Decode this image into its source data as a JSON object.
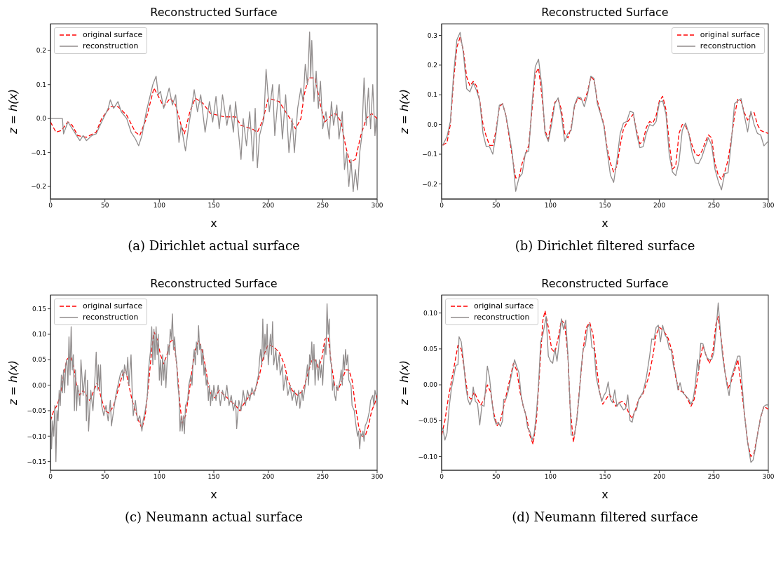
{
  "chart_data": [
    {
      "type": "line",
      "title": "Reconstructed Surface",
      "xlabel": "x",
      "ylabel": "z = h(x)",
      "xlim": [
        0,
        300
      ],
      "xticks": [
        0,
        50,
        100,
        150,
        200,
        250,
        300
      ],
      "ylim": [
        -0.237,
        0.279
      ],
      "yticks": [
        {
          "value": -0.2,
          "label": "−0.2"
        },
        {
          "value": -0.1,
          "label": "−0.1"
        },
        {
          "value": 0,
          "label": "0.0"
        },
        {
          "value": 0.1,
          "label": "0.1"
        },
        {
          "value": 0.2,
          "label": "0.2"
        }
      ],
      "legend": "top left",
      "grid": false,
      "annotations": [
        "(a) Dirichlet actual surface"
      ],
      "series": [
        {
          "name": "original surface",
          "color": "#ff0000",
          "line_style": "dashed",
          "x": [
            0,
            5,
            10,
            16,
            20,
            25,
            33,
            42,
            47,
            55,
            62,
            70,
            78,
            82,
            88,
            95,
            100,
            104,
            110,
            115,
            120,
            123,
            128,
            133,
            140,
            147,
            160,
            170,
            175,
            185,
            190,
            195,
            200,
            210,
            220,
            225,
            230,
            233,
            237,
            243,
            248,
            252,
            258,
            262,
            267,
            271,
            275,
            280,
            285,
            290,
            295,
            300
          ],
          "values": [
            -0.01,
            -0.04,
            -0.035,
            -0.01,
            -0.02,
            -0.05,
            -0.055,
            -0.04,
            0.0,
            0.035,
            0.035,
            0.01,
            -0.04,
            -0.05,
            0.0,
            0.09,
            0.06,
            0.035,
            0.06,
            0.04,
            -0.02,
            -0.045,
            0.02,
            0.06,
            0.045,
            0.015,
            0.005,
            0.005,
            -0.02,
            -0.03,
            -0.04,
            -0.005,
            0.06,
            0.05,
            0.0,
            -0.03,
            0.0,
            0.07,
            0.12,
            0.12,
            0.04,
            -0.01,
            0.01,
            0.015,
            -0.01,
            -0.08,
            -0.13,
            -0.12,
            -0.05,
            0.0,
            0.015,
            0.0
          ]
        },
        {
          "name": "reconstruction",
          "color": "#918d8d",
          "line_style": "solid",
          "x": [
            0,
            11,
            12,
            16,
            20,
            25,
            27,
            30,
            33,
            38,
            42,
            47,
            53,
            55,
            58,
            62,
            65,
            70,
            74,
            78,
            81,
            84,
            88,
            94,
            97,
            99,
            101,
            104,
            109,
            112,
            115,
            118,
            120,
            124,
            127,
            130,
            132,
            135,
            138,
            142,
            146,
            149,
            152,
            155,
            158,
            162,
            165,
            168,
            170,
            175,
            177,
            180,
            183,
            186,
            188,
            190,
            192,
            196,
            198,
            201,
            204,
            206,
            210,
            213,
            216,
            219,
            222,
            224,
            227,
            230,
            232,
            234,
            236,
            238,
            239,
            240,
            242,
            244,
            246,
            248,
            250,
            253,
            256,
            258,
            260,
            263,
            265,
            268,
            270,
            272,
            274,
            276,
            278,
            280,
            282,
            284,
            286,
            288,
            290,
            292,
            294,
            296,
            298,
            299,
            300
          ],
          "values": [
            0,
            0,
            -0.045,
            -0.01,
            -0.03,
            -0.055,
            -0.065,
            -0.05,
            -0.065,
            -0.05,
            -0.045,
            -0.01,
            0.03,
            0.055,
            0.03,
            0.05,
            0.02,
            0.0,
            -0.04,
            -0.06,
            -0.08,
            -0.05,
            0.02,
            0.1,
            0.125,
            0.07,
            0.08,
            0.03,
            0.09,
            0.04,
            0.07,
            -0.07,
            -0.02,
            -0.095,
            -0.02,
            0.04,
            0.085,
            0.02,
            0.07,
            -0.04,
            0.05,
            -0.01,
            0.065,
            -0.03,
            0.07,
            -0.02,
            0.04,
            -0.04,
            0.05,
            -0.12,
            0.0,
            -0.08,
            0.02,
            -0.125,
            0.03,
            -0.145,
            -0.05,
            0.0,
            0.145,
            0.02,
            0.1,
            -0.05,
            0.1,
            -0.06,
            0.07,
            -0.1,
            0.0,
            -0.1,
            0.03,
            0.09,
            0.05,
            0.16,
            0.1,
            0.255,
            0.12,
            0.23,
            0.05,
            0.14,
            0.03,
            0.11,
            -0.03,
            0.02,
            -0.06,
            0.05,
            -0.02,
            0.04,
            -0.06,
            0.02,
            -0.15,
            -0.1,
            -0.2,
            -0.12,
            -0.215,
            -0.15,
            -0.21,
            -0.1,
            -0.05,
            0.12,
            -0.02,
            0.09,
            -0.03,
            0.1,
            -0.05,
            0.0,
            -0.06
          ]
        }
      ]
    },
    {
      "type": "line",
      "title": "Reconstructed Surface",
      "xlabel": "x",
      "ylabel": "z = h(x)",
      "xlim": [
        0,
        300
      ],
      "xticks": [
        0,
        50,
        100,
        150,
        200,
        250,
        300
      ],
      "ylim": [
        -0.251,
        0.339
      ],
      "yticks": [
        {
          "value": -0.2,
          "label": "−0.2"
        },
        {
          "value": -0.1,
          "label": "−0.1"
        },
        {
          "value": 0,
          "label": "0.0"
        },
        {
          "value": 0.1,
          "label": "0.1"
        },
        {
          "value": 0.2,
          "label": "0.2"
        },
        {
          "value": 0.3,
          "label": "0.3"
        }
      ],
      "legend": "top right",
      "grid": false,
      "annotations": [
        "(b) Dirichlet filtered surface"
      ],
      "series": [
        {
          "name": "original surface",
          "color": "#ff0000",
          "line_style": "dashed",
          "x": [
            1,
            5,
            8,
            11,
            14,
            17,
            20,
            23,
            26,
            29,
            32,
            35,
            38,
            41,
            44,
            47,
            50,
            53,
            56,
            59,
            62,
            65,
            68,
            71,
            74,
            77,
            80,
            83,
            86,
            89,
            92,
            95,
            98,
            101,
            104,
            107,
            110,
            113,
            116,
            119,
            122,
            125,
            128,
            131,
            134,
            137,
            140,
            143,
            146,
            149,
            152,
            155,
            158,
            161,
            164,
            167,
            170,
            173,
            176,
            179,
            182,
            185,
            188,
            191,
            194,
            197,
            200,
            203,
            206,
            209,
            212,
            215,
            218,
            221,
            224,
            227,
            230,
            233,
            236,
            239,
            242,
            245,
            248,
            251,
            254,
            257,
            260,
            263,
            266,
            269,
            272,
            275,
            278,
            281,
            284,
            287,
            290,
            293,
            296,
            300
          ],
          "values": [
            -0.07,
            -0.06,
            0.0,
            0.15,
            0.26,
            0.295,
            0.25,
            0.16,
            0.13,
            0.145,
            0.13,
            0.08,
            0.0,
            -0.04,
            -0.07,
            -0.07,
            -0.02,
            0.06,
            0.07,
            0.03,
            -0.04,
            -0.11,
            -0.18,
            -0.18,
            -0.13,
            -0.1,
            -0.07,
            0.05,
            0.17,
            0.19,
            0.1,
            -0.02,
            -0.05,
            0.02,
            0.075,
            0.085,
            0.05,
            -0.03,
            -0.045,
            -0.01,
            0.06,
            0.09,
            0.085,
            0.08,
            0.11,
            0.16,
            0.15,
            0.08,
            0.04,
            0.0,
            -0.08,
            -0.13,
            -0.16,
            -0.14,
            -0.07,
            -0.015,
            0.005,
            0.02,
            0.035,
            -0.02,
            -0.065,
            -0.055,
            -0.01,
            0.01,
            0.005,
            0.03,
            0.08,
            0.095,
            0.05,
            -0.06,
            -0.15,
            -0.14,
            -0.03,
            0.0,
            -0.005,
            -0.03,
            -0.07,
            -0.1,
            -0.105,
            -0.09,
            -0.06,
            -0.035,
            -0.045,
            -0.13,
            -0.17,
            -0.185,
            -0.16,
            -0.12,
            -0.05,
            0.03,
            0.085,
            0.08,
            0.04,
            0.015,
            0.035,
            0.04,
            0.0,
            -0.02,
            -0.025,
            -0.03
          ]
        },
        {
          "name": "reconstruction",
          "color": "#918d8d",
          "line_style": "solid",
          "x": [
            1,
            5,
            8,
            11,
            14,
            17,
            20,
            23,
            26,
            29,
            32,
            35,
            38,
            41,
            44,
            47,
            50,
            53,
            56,
            59,
            62,
            65,
            68,
            71,
            74,
            77,
            80,
            83,
            86,
            89,
            92,
            95,
            98,
            101,
            104,
            107,
            110,
            113,
            116,
            119,
            122,
            125,
            128,
            131,
            134,
            137,
            140,
            143,
            146,
            149,
            152,
            155,
            158,
            161,
            164,
            167,
            170,
            173,
            176,
            179,
            182,
            185,
            188,
            191,
            194,
            197,
            200,
            203,
            206,
            209,
            212,
            215,
            218,
            221,
            224,
            227,
            230,
            233,
            236,
            239,
            242,
            245,
            248,
            251,
            254,
            257,
            260,
            263,
            266,
            269,
            272,
            275,
            278,
            281,
            284,
            287,
            290,
            293,
            296,
            300
          ],
          "values": [
            -0.07,
            -0.04,
            0.01,
            0.17,
            0.285,
            0.31,
            0.24,
            0.12,
            0.11,
            0.14,
            0.115,
            0.08,
            -0.03,
            -0.075,
            -0.075,
            -0.1,
            -0.03,
            0.065,
            0.07,
            0.03,
            -0.03,
            -0.1,
            -0.225,
            -0.18,
            -0.165,
            -0.095,
            -0.09,
            0.07,
            0.195,
            0.22,
            0.13,
            -0.03,
            -0.057,
            0.0,
            0.07,
            0.09,
            0.03,
            -0.057,
            -0.03,
            -0.02,
            0.065,
            0.093,
            0.09,
            0.06,
            0.1,
            0.163,
            0.155,
            0.07,
            0.035,
            -0.005,
            -0.09,
            -0.17,
            -0.195,
            -0.12,
            -0.03,
            0.005,
            0.01,
            0.045,
            0.04,
            -0.03,
            -0.078,
            -0.075,
            -0.03,
            0.0,
            -0.005,
            0.01,
            0.075,
            0.08,
            0.035,
            -0.1,
            -0.16,
            -0.172,
            -0.125,
            -0.02,
            0.005,
            -0.03,
            -0.095,
            -0.13,
            -0.132,
            -0.11,
            -0.075,
            -0.045,
            -0.07,
            -0.15,
            -0.19,
            -0.22,
            -0.165,
            -0.163,
            -0.06,
            0.07,
            0.08,
            0.087,
            0.03,
            -0.025,
            0.045,
            0.0,
            -0.03,
            -0.035,
            -0.072,
            -0.056
          ]
        }
      ]
    },
    {
      "type": "line",
      "title": "Reconstructed Surface",
      "xlabel": "x",
      "ylabel": "z = h(x)",
      "xlim": [
        0,
        300
      ],
      "xticks": [
        0,
        50,
        100,
        150,
        200,
        250,
        300
      ],
      "ylim": [
        -0.167,
        0.177
      ],
      "yticks": [
        {
          "value": -0.15,
          "label": "−0.15"
        },
        {
          "value": -0.1,
          "label": "−0.10"
        },
        {
          "value": -0.05,
          "label": "−0.05"
        },
        {
          "value": 0,
          "label": "0.00"
        },
        {
          "value": 0.05,
          "label": "0.05"
        },
        {
          "value": 0.1,
          "label": "0.10"
        },
        {
          "value": 0.15,
          "label": "0.15"
        }
      ],
      "legend": "top left",
      "grid": false,
      "annotations": [
        "(c) Neumann actual surface"
      ],
      "series": [
        {
          "name": "original surface",
          "color": "#ff0000",
          "line_style": "dashed",
          "x": [
            0,
            3,
            6,
            9,
            12,
            15,
            18,
            21,
            24,
            27,
            30,
            33,
            36,
            40,
            43,
            46,
            50,
            54,
            58,
            62,
            66,
            69,
            72,
            75,
            78,
            81,
            84,
            87,
            90,
            93,
            95,
            98,
            101,
            104,
            107,
            110,
            113,
            116,
            119,
            121,
            124,
            127,
            130,
            133,
            136,
            139,
            142,
            145,
            148,
            151,
            155,
            160,
            165,
            170,
            174,
            178,
            183,
            188,
            192,
            196,
            200,
            205,
            210,
            215,
            218,
            222,
            227,
            232,
            236,
            240,
            243,
            246,
            249,
            252,
            255,
            258,
            261,
            264,
            268,
            271,
            274,
            277,
            280,
            283,
            286,
            289,
            292,
            295,
            298,
            300
          ],
          "values": [
            -0.07,
            -0.05,
            -0.04,
            -0.02,
            0.02,
            0.05,
            0.057,
            0.04,
            0.0,
            -0.02,
            -0.01,
            -0.02,
            -0.03,
            -0.01,
            0.005,
            -0.02,
            -0.05,
            -0.055,
            -0.04,
            -0.01,
            0.02,
            0.03,
            0.0,
            -0.03,
            -0.05,
            -0.07,
            -0.085,
            -0.06,
            0.0,
            0.07,
            0.105,
            0.09,
            0.06,
            0.042,
            0.06,
            0.085,
            0.09,
            0.04,
            -0.04,
            -0.075,
            -0.06,
            -0.02,
            0.03,
            0.07,
            0.087,
            0.07,
            0.04,
            0.0,
            -0.02,
            -0.025,
            -0.01,
            -0.02,
            -0.03,
            -0.04,
            -0.05,
            -0.035,
            -0.02,
            -0.01,
            0.02,
            0.06,
            0.08,
            0.075,
            0.065,
            0.04,
            0.01,
            -0.01,
            -0.02,
            -0.01,
            0.02,
            0.05,
            0.05,
            0.035,
            0.05,
            0.09,
            0.095,
            0.04,
            0.0,
            -0.01,
            0.01,
            0.03,
            0.03,
            0.01,
            -0.04,
            -0.08,
            -0.1,
            -0.1,
            -0.08,
            -0.05,
            -0.035,
            -0.02
          ]
        },
        {
          "name": "reconstruction",
          "color": "#918d8d",
          "line_style": "solid",
          "x": [
            0,
            1,
            2,
            3,
            4,
            5,
            6,
            7,
            8,
            9,
            10,
            11,
            12,
            13,
            14,
            15,
            16,
            17,
            18,
            19,
            20,
            21,
            22,
            23,
            24,
            25,
            27,
            28,
            30,
            32,
            33,
            34,
            35,
            37,
            39,
            41,
            42,
            43,
            44,
            45,
            46,
            47,
            49,
            51,
            53,
            55,
            56,
            58,
            60,
            62,
            64,
            66,
            67,
            68,
            70,
            71,
            72,
            74,
            75,
            76,
            78,
            80,
            82,
            84,
            85,
            87,
            89,
            90,
            92,
            93,
            94,
            95,
            96,
            97,
            98,
            99,
            100,
            101,
            102,
            103,
            104,
            105,
            106,
            107,
            108,
            109,
            110,
            111,
            112,
            113,
            114,
            115,
            116,
            117,
            118,
            119,
            120,
            121,
            122,
            123,
            124,
            126,
            127,
            129,
            130,
            131,
            132,
            133,
            134,
            135,
            136,
            137,
            138,
            139,
            140,
            141,
            142,
            143,
            144,
            145,
            146,
            147,
            148,
            149,
            150,
            152,
            154,
            156,
            158,
            160,
            162,
            164,
            166,
            168,
            170,
            171,
            173,
            175,
            177,
            179,
            181,
            183,
            185,
            187,
            189,
            191,
            192,
            193,
            194,
            195,
            196,
            197,
            198,
            199,
            200,
            202,
            203,
            204,
            205,
            207,
            208,
            210,
            211,
            213,
            214,
            216,
            218,
            220,
            222,
            224,
            226,
            228,
            229,
            231,
            232,
            234,
            236,
            237,
            238,
            239,
            240,
            241,
            242,
            243,
            244,
            246,
            247,
            248,
            249,
            250,
            251,
            252,
            253,
            254,
            255,
            256,
            257,
            258,
            259,
            260,
            261,
            262,
            263,
            264,
            266,
            267,
            268,
            269,
            270,
            271,
            272,
            273,
            274,
            276,
            277,
            279,
            280,
            282,
            283,
            284,
            285,
            286,
            287,
            288,
            289,
            291,
            293,
            294,
            296,
            297,
            298,
            299,
            300
          ],
          "values": [
            -0.03,
            -0.125,
            -0.07,
            -0.1,
            -0.04,
            -0.15,
            -0.05,
            -0.07,
            -0.01,
            -0.04,
            0.02,
            -0.015,
            0.03,
            -0.015,
            0.04,
            0.05,
            0.0,
            0.095,
            0.02,
            0.115,
            0.03,
            0.06,
            -0.05,
            0.03,
            -0.05,
            0.0,
            -0.04,
            0.05,
            -0.02,
            0.03,
            -0.07,
            0.01,
            -0.09,
            -0.01,
            -0.05,
            0.02,
            0.065,
            -0.01,
            0.04,
            -0.01,
            0.04,
            -0.04,
            -0.06,
            -0.04,
            -0.07,
            -0.03,
            -0.08,
            -0.05,
            -0.02,
            0.0,
            0.02,
            0.03,
            0.01,
            0.04,
            0.02,
            0.055,
            0.0,
            0.06,
            -0.01,
            -0.06,
            -0.03,
            -0.07,
            -0.06,
            -0.09,
            -0.07,
            -0.05,
            -0.02,
            0.03,
            0.07,
            0.115,
            0.04,
            0.11,
            0.05,
            0.115,
            0.06,
            0.1,
            0.01,
            0.05,
            0.0,
            0.06,
            0.01,
            0.05,
            -0.005,
            0.04,
            0.08,
            0.06,
            0.11,
            0.09,
            0.14,
            0.07,
            0.095,
            0.06,
            0.04,
            0.0,
            -0.02,
            -0.09,
            -0.06,
            -0.09,
            -0.06,
            -0.095,
            -0.04,
            -0.03,
            0.0,
            0.02,
            0.0,
            0.05,
            0.07,
            0.04,
            0.085,
            0.06,
            0.117,
            0.07,
            0.08,
            0.04,
            0.07,
            0.02,
            0.04,
            0.0,
            0.015,
            -0.03,
            0.0,
            -0.04,
            -0.01,
            -0.03,
            0.0,
            -0.03,
            0.0,
            -0.04,
            -0.01,
            -0.03,
            0.0,
            -0.04,
            -0.02,
            -0.05,
            -0.03,
            -0.085,
            -0.03,
            -0.05,
            -0.01,
            -0.04,
            -0.01,
            -0.03,
            -0.005,
            -0.02,
            0.0,
            0.02,
            0.05,
            0.07,
            0.04,
            0.13,
            0.05,
            0.1,
            0.06,
            0.12,
            0.04,
            0.1,
            0.06,
            0.125,
            0.04,
            0.07,
            0.03,
            0.06,
            0.02,
            0.04,
            -0.01,
            0.02,
            -0.02,
            0.0,
            -0.03,
            -0.01,
            -0.04,
            -0.01,
            -0.045,
            -0.01,
            -0.03,
            0.0,
            0.04,
            0.0,
            0.06,
            0.04,
            0.085,
            0.03,
            0.08,
            0.0,
            0.05,
            0.01,
            0.05,
            0.015,
            0.04,
            0.0,
            0.05,
            0.08,
            0.06,
            0.16,
            0.1,
            0.13,
            0.05,
            0.04,
            -0.01,
            0.01,
            -0.02,
            -0.03,
            0.0,
            -0.01,
            0.01,
            0.03,
            0.0,
            0.06,
            0.03,
            0.07,
            0.04,
            0.06,
            0.01,
            0.0,
            -0.04,
            -0.05,
            -0.07,
            -0.1,
            -0.09,
            -0.125,
            -0.095,
            -0.1,
            -0.09,
            -0.11,
            -0.08,
            -0.07,
            -0.05,
            -0.03,
            -0.02,
            -0.04,
            -0.01,
            -0.02,
            -0.05
          ]
        }
      ]
    },
    {
      "type": "line",
      "title": "Reconstructed Surface",
      "xlabel": "x",
      "ylabel": "z = h(x)",
      "xlim": [
        0,
        300
      ],
      "xticks": [
        0,
        50,
        100,
        150,
        200,
        250,
        300
      ],
      "ylim": [
        -0.119,
        0.125
      ],
      "yticks": [
        {
          "value": -0.1,
          "label": "−0.10"
        },
        {
          "value": -0.05,
          "label": "−0.05"
        },
        {
          "value": 0,
          "label": "0.00"
        },
        {
          "value": 0.05,
          "label": "0.05"
        },
        {
          "value": 0.1,
          "label": "0.10"
        }
      ],
      "legend": "top left",
      "grid": false,
      "annotations": [
        "(d) Neumann filtered surface"
      ],
      "series": [
        {
          "name": "original surface",
          "color": "#ff0000",
          "line_style": "dashed",
          "x": [
            0,
            3,
            6,
            9,
            12,
            15,
            18,
            21,
            24,
            27,
            30,
            33,
            36,
            39,
            42,
            45,
            48,
            51,
            54,
            57,
            60,
            63,
            66,
            69,
            72,
            75,
            78,
            81,
            84,
            87,
            90,
            93,
            95,
            98,
            101,
            104,
            107,
            110,
            113,
            116,
            118,
            121,
            124,
            127,
            130,
            133,
            136,
            139,
            142,
            145,
            148,
            151,
            154,
            157,
            160,
            163,
            166,
            169,
            172,
            175,
            178,
            181,
            185,
            190,
            194,
            197,
            200,
            204,
            208,
            212,
            215,
            218,
            222,
            226,
            229,
            232,
            235,
            238,
            240,
            243,
            246,
            249,
            252,
            254,
            257,
            260,
            263,
            266,
            269,
            272,
            275,
            278,
            281,
            284,
            287,
            290,
            293,
            296,
            300
          ],
          "values": [
            -0.07,
            -0.05,
            -0.02,
            0.005,
            0.03,
            0.055,
            0.05,
            0.02,
            -0.015,
            -0.02,
            -0.01,
            -0.02,
            -0.028,
            -0.02,
            0.0,
            -0.01,
            -0.04,
            -0.057,
            -0.05,
            -0.03,
            -0.01,
            0.01,
            0.03,
            0.02,
            -0.01,
            -0.03,
            -0.045,
            -0.07,
            -0.083,
            -0.05,
            0.02,
            0.09,
            0.103,
            0.08,
            0.05,
            0.045,
            0.065,
            0.09,
            0.085,
            0.04,
            -0.03,
            -0.08,
            -0.05,
            0.0,
            0.05,
            0.08,
            0.087,
            0.07,
            0.03,
            -0.01,
            -0.027,
            -0.02,
            -0.013,
            -0.02,
            -0.03,
            -0.025,
            -0.023,
            -0.028,
            -0.04,
            -0.047,
            -0.035,
            -0.02,
            -0.012,
            0.01,
            0.04,
            0.07,
            0.08,
            0.075,
            0.065,
            0.045,
            0.01,
            -0.008,
            -0.01,
            -0.02,
            -0.03,
            -0.02,
            0.01,
            0.04,
            0.055,
            0.04,
            0.03,
            0.045,
            0.085,
            0.095,
            0.06,
            0.02,
            -0.005,
            0.005,
            0.02,
            0.035,
            0.0,
            -0.04,
            -0.08,
            -0.1,
            -0.095,
            -0.07,
            -0.045,
            -0.03,
            -0.034
          ]
        },
        {
          "name": "reconstruction",
          "color": "#918d8d",
          "line_style": "solid",
          "x": [
            1,
            3,
            5,
            7,
            9,
            11,
            13,
            15,
            16,
            18,
            20,
            22,
            24,
            26,
            28,
            29,
            31,
            33,
            35,
            37,
            39,
            42,
            44,
            46,
            48,
            50,
            52,
            54,
            56,
            57,
            59,
            61,
            63,
            65,
            67,
            69,
            71,
            73,
            75,
            77,
            79,
            81,
            83,
            85,
            87,
            89,
            91,
            93,
            96,
            98,
            100,
            102,
            104,
            106,
            108,
            110,
            112,
            114,
            116,
            118,
            119,
            122,
            124,
            126,
            128,
            130,
            132,
            134,
            136,
            138,
            140,
            142,
            145,
            147,
            149,
            151,
            153,
            155,
            157,
            159,
            161,
            163,
            165,
            167,
            169,
            171,
            173,
            175,
            177,
            179,
            181,
            185,
            188,
            191,
            193,
            195,
            197,
            199,
            201,
            203,
            205,
            207,
            209,
            211,
            213,
            215,
            217,
            219,
            221,
            224,
            227,
            229,
            231,
            233,
            235,
            236,
            238,
            240,
            242,
            244,
            246,
            248,
            250,
            252,
            254,
            256,
            258,
            260,
            262,
            264,
            266,
            268,
            270,
            272,
            274,
            276,
            278,
            281,
            284,
            286,
            288,
            290,
            293,
            296,
            298,
            300
          ],
          "values": [
            -0.06,
            -0.077,
            -0.067,
            -0.03,
            -0.005,
            0.01,
            0.027,
            0.028,
            0.067,
            0.06,
            0.035,
            0.0,
            -0.02,
            -0.028,
            -0.02,
            -0.003,
            -0.023,
            -0.026,
            -0.056,
            -0.028,
            -0.03,
            0.026,
            0.01,
            -0.02,
            -0.045,
            -0.055,
            -0.052,
            -0.058,
            -0.05,
            -0.02,
            -0.02,
            -0.01,
            0.005,
            0.02,
            0.035,
            0.025,
            0.017,
            -0.015,
            -0.03,
            -0.04,
            -0.06,
            -0.065,
            -0.077,
            -0.068,
            -0.04,
            0.0,
            0.06,
            0.07,
            0.095,
            0.04,
            0.033,
            0.03,
            0.05,
            0.033,
            0.06,
            0.092,
            0.077,
            0.09,
            0.04,
            -0.03,
            -0.07,
            -0.07,
            -0.05,
            -0.02,
            0.02,
            0.05,
            0.055,
            0.08,
            0.085,
            0.052,
            0.05,
            0.01,
            -0.01,
            -0.023,
            -0.015,
            -0.01,
            0.004,
            -0.02,
            -0.025,
            -0.007,
            -0.03,
            -0.025,
            -0.03,
            -0.035,
            -0.033,
            -0.014,
            -0.05,
            -0.052,
            -0.037,
            -0.035,
            -0.02,
            -0.01,
            0.01,
            0.04,
            0.064,
            0.063,
            0.08,
            0.083,
            0.06,
            0.083,
            0.07,
            0.065,
            0.05,
            0.048,
            0.025,
            0.015,
            -0.007,
            0.003,
            -0.01,
            -0.015,
            -0.02,
            -0.027,
            -0.02,
            0.0,
            0.035,
            0.02,
            0.058,
            0.057,
            0.045,
            0.037,
            0.035,
            0.035,
            0.045,
            0.075,
            0.114,
            0.075,
            0.04,
            0.02,
            0.0,
            -0.015,
            0.01,
            0.02,
            0.03,
            0.04,
            0.04,
            0.0,
            -0.04,
            -0.08,
            -0.108,
            -0.105,
            -0.09,
            -0.07,
            -0.045,
            -0.03,
            -0.028,
            -0.028
          ]
        }
      ]
    }
  ]
}
